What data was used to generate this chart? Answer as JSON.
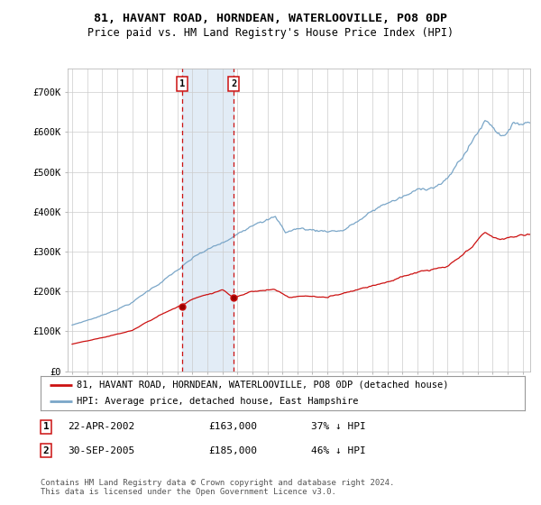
{
  "title": "81, HAVANT ROAD, HORNDEAN, WATERLOOVILLE, PO8 0DP",
  "subtitle": "Price paid vs. HM Land Registry's House Price Index (HPI)",
  "ylabel_ticks": [
    "£0",
    "£100K",
    "£200K",
    "£300K",
    "£400K",
    "£500K",
    "£600K",
    "£700K"
  ],
  "ytick_values": [
    0,
    100000,
    200000,
    300000,
    400000,
    500000,
    600000,
    700000
  ],
  "ylim": [
    0,
    760000
  ],
  "xlim_start": 1994.7,
  "xlim_end": 2025.5,
  "hpi_color": "#7aa6c8",
  "price_color": "#cc1111",
  "vline_color": "#cc1111",
  "span_color": "#d0e0f0",
  "background_color": "#ffffff",
  "grid_color": "#cccccc",
  "transaction1_x": 2002.31,
  "transaction1_y": 163000,
  "transaction2_x": 2005.75,
  "transaction2_y": 185000,
  "legend_entry1": "81, HAVANT ROAD, HORNDEAN, WATERLOOVILLE, PO8 0DP (detached house)",
  "legend_entry2": "HPI: Average price, detached house, East Hampshire",
  "footer": "Contains HM Land Registry data © Crown copyright and database right 2024.\nThis data is licensed under the Open Government Licence v3.0.",
  "title_fontsize": 9.5,
  "subtitle_fontsize": 8.5,
  "tick_fontsize": 7.5,
  "legend_fontsize": 7.5,
  "table_fontsize": 8,
  "footer_fontsize": 6.5
}
